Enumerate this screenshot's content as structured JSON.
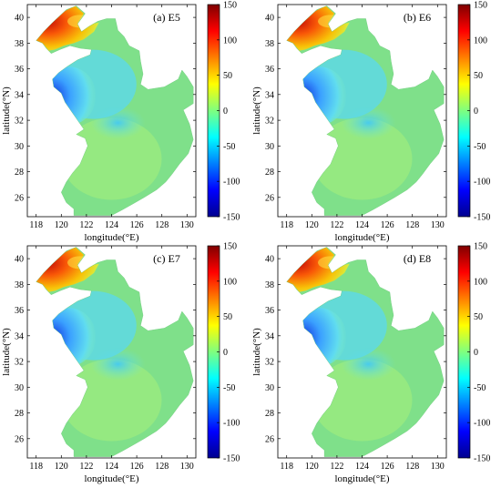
{
  "figure": {
    "x_axis_label": "longitude(°E)",
    "y_axis_label": "latitude(°N)",
    "colorbar": {
      "min": -150,
      "max": 150,
      "ticks": [
        "150",
        "100",
        "50",
        "0",
        "-50",
        "-100",
        "-150"
      ]
    }
  },
  "panels": [
    {
      "id": "E5",
      "label": "(a) E5"
    },
    {
      "id": "E6",
      "label": "(b) E6"
    },
    {
      "id": "E7",
      "label": "(c) E7"
    },
    {
      "id": "E8",
      "label": "(d) E8"
    }
  ],
  "axes": {
    "x_ticks": [
      "118",
      "120",
      "122",
      "124",
      "126",
      "128",
      "130"
    ],
    "y_ticks": [
      "26",
      "28",
      "30",
      "32",
      "34",
      "36",
      "38",
      "40"
    ],
    "xlim": [
      117.3,
      130.7
    ],
    "ylim": [
      24.5,
      41.0
    ]
  },
  "colors": {
    "land": "#ffffff",
    "sea_base": "#7fe08a"
  }
}
